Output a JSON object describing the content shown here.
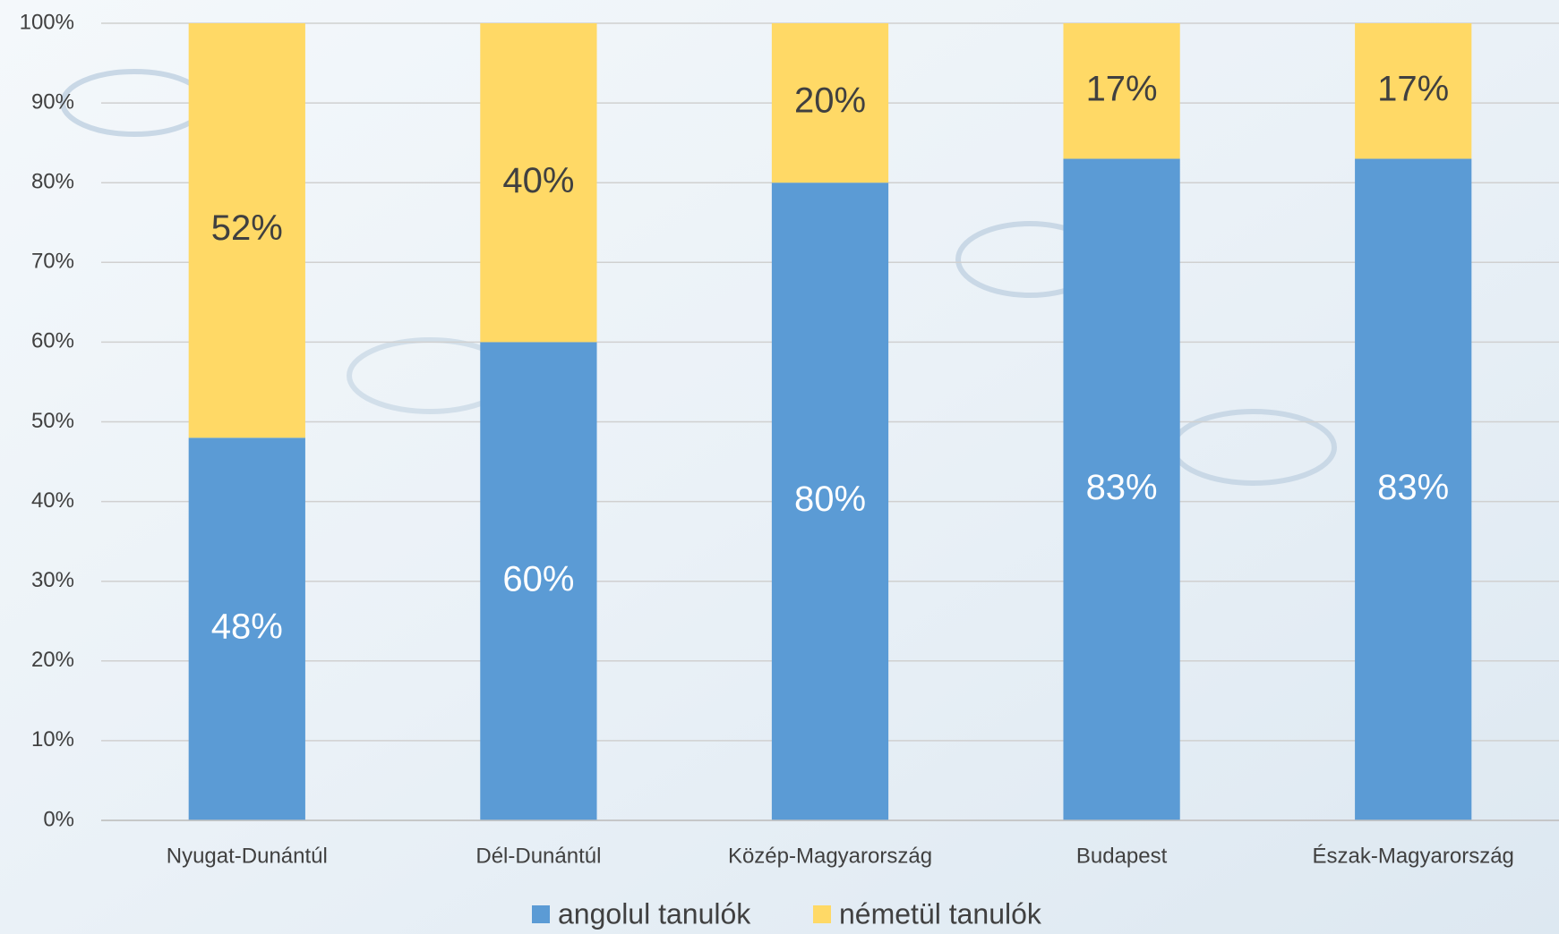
{
  "chart_data": {
    "type": "stacked_bar",
    "categories": [
      "Nyugat-Dunántúl",
      "Dél-Dunántúl",
      "Közép-Magyarország",
      "Budapest",
      "Észak-Magyarország"
    ],
    "series": [
      {
        "name": "angolul tanulók",
        "color": "#5b9bd5",
        "values": [
          48,
          60,
          80,
          83,
          83
        ],
        "value_labels": [
          "48%",
          "60%",
          "80%",
          "83%",
          "83%"
        ]
      },
      {
        "name": "németül tanulók",
        "color": "#ffd966",
        "values": [
          52,
          40,
          20,
          17,
          17
        ],
        "value_labels": [
          "52%",
          "40%",
          "20%",
          "17%",
          "17%"
        ]
      }
    ],
    "ylim": [
      0,
      100
    ],
    "yticks": [
      {
        "value": 0,
        "label": "0%"
      },
      {
        "value": 10,
        "label": "10%"
      },
      {
        "value": 20,
        "label": "20%"
      },
      {
        "value": 30,
        "label": "30%"
      },
      {
        "value": 40,
        "label": "40%"
      },
      {
        "value": 50,
        "label": "50%"
      },
      {
        "value": 60,
        "label": "60%"
      },
      {
        "value": 70,
        "label": "70%"
      },
      {
        "value": 80,
        "label": "80%"
      },
      {
        "value": 90,
        "label": "90%"
      },
      {
        "value": 100,
        "label": "100%"
      }
    ],
    "grid": true,
    "legend": "bottom"
  }
}
